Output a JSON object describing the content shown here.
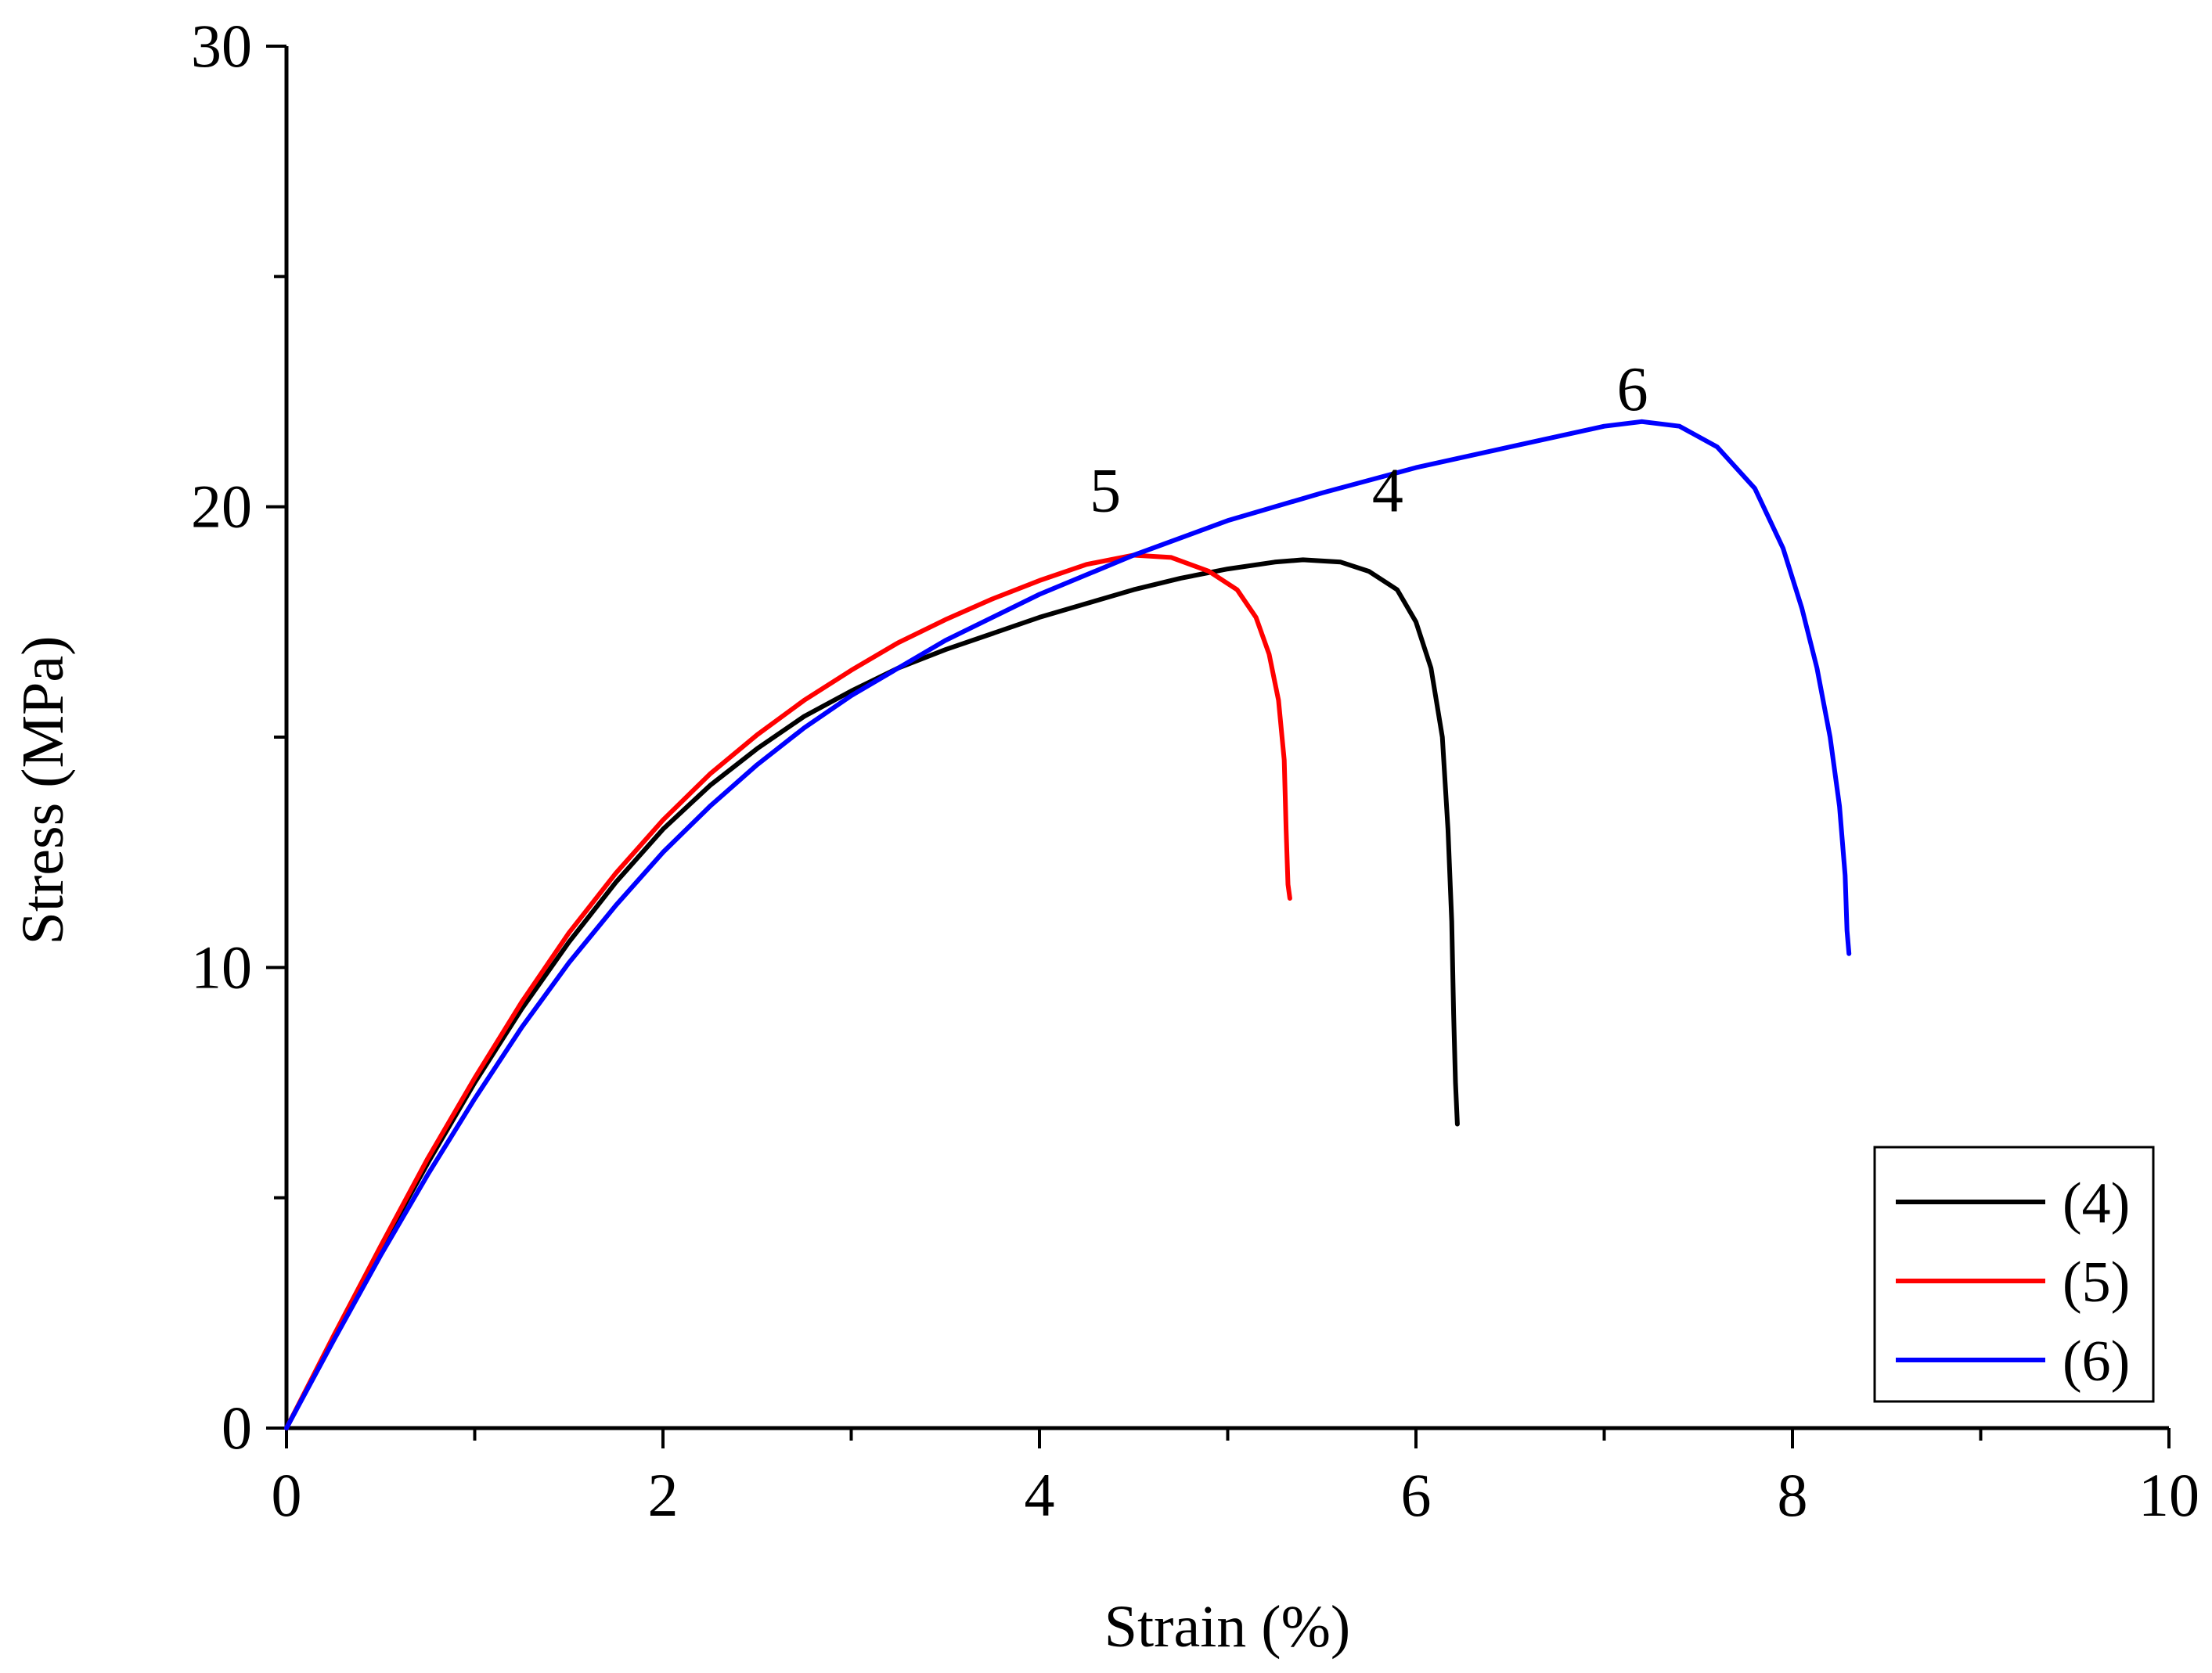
{
  "chart_data": {
    "type": "line",
    "title": "",
    "xlabel": "Strain (%)",
    "ylabel": "Stress (MPa)",
    "xlim": [
      0,
      10
    ],
    "ylim": [
      0,
      30
    ],
    "xticks": [
      0,
      2,
      4,
      6,
      8,
      10
    ],
    "yticks": [
      0,
      10,
      20,
      30
    ],
    "x_minor_step": 1,
    "y_minor_step": 5,
    "grid": false,
    "legend_position": "bottom-right",
    "series": [
      {
        "name": "(4)",
        "curve_label": "4",
        "curve_label_at": [
          5.85,
          19.9
        ],
        "color": "#000000",
        "points": [
          [
            0,
            0
          ],
          [
            0.25,
            1.95
          ],
          [
            0.5,
            3.9
          ],
          [
            0.75,
            5.75
          ],
          [
            1,
            7.5
          ],
          [
            1.25,
            9.1
          ],
          [
            1.5,
            10.55
          ],
          [
            1.75,
            11.85
          ],
          [
            2,
            13
          ],
          [
            2.25,
            13.95
          ],
          [
            2.5,
            14.75
          ],
          [
            2.75,
            15.45
          ],
          [
            3,
            16
          ],
          [
            3.25,
            16.5
          ],
          [
            3.5,
            16.9
          ],
          [
            3.75,
            17.25
          ],
          [
            4,
            17.6
          ],
          [
            4.25,
            17.9
          ],
          [
            4.5,
            18.2
          ],
          [
            4.75,
            18.45
          ],
          [
            5,
            18.65
          ],
          [
            5.25,
            18.8
          ],
          [
            5.4,
            18.85
          ],
          [
            5.6,
            18.8
          ],
          [
            5.75,
            18.6
          ],
          [
            5.9,
            18.2
          ],
          [
            6.0,
            17.5
          ],
          [
            6.08,
            16.5
          ],
          [
            6.14,
            15
          ],
          [
            6.17,
            13
          ],
          [
            6.19,
            11
          ],
          [
            6.2,
            9
          ],
          [
            6.21,
            7.5
          ],
          [
            6.22,
            6.6
          ]
        ]
      },
      {
        "name": "(5)",
        "curve_label": "5",
        "curve_label_at": [
          4.35,
          19.9
        ],
        "color": "#ff0000",
        "points": [
          [
            0,
            0
          ],
          [
            0.25,
            2
          ],
          [
            0.5,
            3.95
          ],
          [
            0.75,
            5.85
          ],
          [
            1,
            7.6
          ],
          [
            1.25,
            9.25
          ],
          [
            1.5,
            10.75
          ],
          [
            1.75,
            12.05
          ],
          [
            2,
            13.2
          ],
          [
            2.25,
            14.2
          ],
          [
            2.5,
            15.05
          ],
          [
            2.75,
            15.8
          ],
          [
            3,
            16.45
          ],
          [
            3.25,
            17.05
          ],
          [
            3.5,
            17.55
          ],
          [
            3.75,
            18.0
          ],
          [
            4,
            18.4
          ],
          [
            4.25,
            18.75
          ],
          [
            4.5,
            18.95
          ],
          [
            4.7,
            18.9
          ],
          [
            4.9,
            18.6
          ],
          [
            5.05,
            18.2
          ],
          [
            5.15,
            17.6
          ],
          [
            5.22,
            16.8
          ],
          [
            5.27,
            15.8
          ],
          [
            5.3,
            14.5
          ],
          [
            5.31,
            13
          ],
          [
            5.32,
            11.8
          ],
          [
            5.33,
            11.5
          ]
        ]
      },
      {
        "name": "(6)",
        "curve_label": "6",
        "curve_label_at": [
          7.15,
          22.1
        ],
        "color": "#0000ff",
        "points": [
          [
            0,
            0
          ],
          [
            0.25,
            1.9
          ],
          [
            0.5,
            3.75
          ],
          [
            0.75,
            5.5
          ],
          [
            1,
            7.15
          ],
          [
            1.25,
            8.7
          ],
          [
            1.5,
            10.1
          ],
          [
            1.75,
            11.35
          ],
          [
            2,
            12.5
          ],
          [
            2.25,
            13.5
          ],
          [
            2.5,
            14.4
          ],
          [
            2.75,
            15.2
          ],
          [
            3,
            15.9
          ],
          [
            3.5,
            17.1
          ],
          [
            4,
            18.1
          ],
          [
            4.5,
            18.95
          ],
          [
            5,
            19.7
          ],
          [
            5.5,
            20.3
          ],
          [
            6,
            20.85
          ],
          [
            6.5,
            21.3
          ],
          [
            7,
            21.75
          ],
          [
            7.2,
            21.85
          ],
          [
            7.4,
            21.75
          ],
          [
            7.6,
            21.3
          ],
          [
            7.8,
            20.4
          ],
          [
            7.95,
            19.1
          ],
          [
            8.05,
            17.8
          ],
          [
            8.13,
            16.5
          ],
          [
            8.2,
            15
          ],
          [
            8.25,
            13.5
          ],
          [
            8.28,
            12
          ],
          [
            8.29,
            10.8
          ],
          [
            8.3,
            10.3
          ]
        ]
      }
    ]
  }
}
